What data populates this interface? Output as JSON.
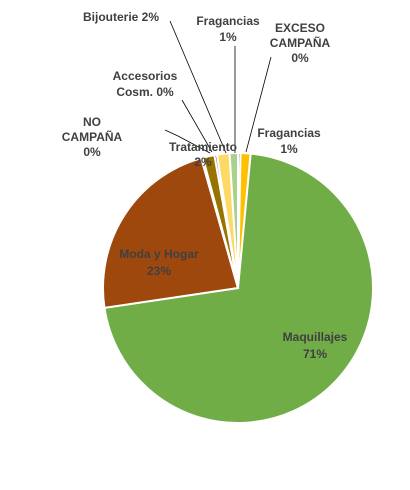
{
  "chart_data": {
    "type": "pie",
    "title": "",
    "slices": [
      {
        "name": "EXCESO CAMPAÑA",
        "label_lines": [
          "EXCESO",
          "CAMPAÑA",
          "0%"
        ],
        "value": 0.3,
        "color": "#A5A5A5"
      },
      {
        "name": "Fragancias",
        "label_lines": [
          "Fragancias",
          "1%"
        ],
        "value": 1.2,
        "color": "#FFC000"
      },
      {
        "name": "Maquillajes",
        "label_lines": [
          "Maquillajes",
          "71%"
        ],
        "value": 71.3,
        "color": "#70AD47"
      },
      {
        "name": "Moda y Hogar",
        "label_lines": [
          "Moda y Hogar",
          "23%"
        ],
        "value": 23.0,
        "color": "#9E480E"
      },
      {
        "name": "NO CAMPAÑA",
        "label_lines": [
          "NO",
          "CAMPAÑA",
          "0%"
        ],
        "value": 0.2,
        "color": "#636363"
      },
      {
        "name": "Tratamiento",
        "label_lines": [
          "Tratamiento",
          "2%"
        ],
        "value": 1.4,
        "color": "#997300"
      },
      {
        "name": "Accesorios Cosm.",
        "label_lines": [
          "Accesorios",
          "Cosm. 0%"
        ],
        "value": 0.3,
        "color": "#264478"
      },
      {
        "name": "Bijouterie",
        "label_lines": [
          "Bijouterie 2%"
        ],
        "value": 1.5,
        "color": "#FFD966"
      },
      {
        "name": "Fragancias",
        "label_lines": [
          "Fragancias",
          "1%"
        ],
        "value": 1.0,
        "color": "#A9D18E"
      }
    ]
  }
}
